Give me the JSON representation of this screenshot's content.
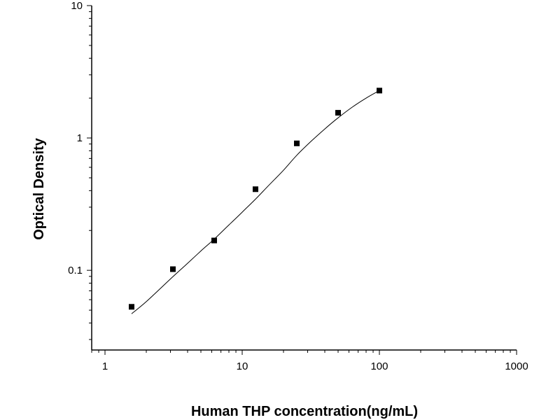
{
  "chart_data": {
    "type": "scatter",
    "title": "",
    "xlabel": "Human THP concentration(ng/mL)",
    "ylabel": "Optical Density",
    "x_scale": "log",
    "y_scale": "log",
    "xlim": [
      0.8,
      1000
    ],
    "ylim": [
      0.025,
      10
    ],
    "x_ticks": [
      1,
      10,
      100,
      1000
    ],
    "x_tick_labels": [
      "1",
      "10",
      "100",
      "1000"
    ],
    "y_ticks": [
      0.1,
      1,
      10
    ],
    "y_tick_labels": [
      "0.1",
      "1",
      "10"
    ],
    "grid": false,
    "legend": "none",
    "series": [
      {
        "kind": "points",
        "marker": "square",
        "color": "#000000",
        "x": [
          1.5625,
          3.125,
          6.25,
          12.5,
          25,
          50,
          100
        ],
        "y": [
          0.053,
          0.102,
          0.168,
          0.41,
          0.91,
          1.55,
          2.28
        ]
      },
      {
        "kind": "fit-curve",
        "color": "#000000",
        "x": [
          1.5625,
          2,
          3,
          4,
          5,
          6.25,
          8,
          10,
          12.5,
          16,
          20,
          25,
          32,
          40,
          50,
          64,
          80,
          100
        ],
        "y": [
          0.047,
          0.058,
          0.086,
          0.113,
          0.14,
          0.172,
          0.22,
          0.275,
          0.345,
          0.45,
          0.57,
          0.74,
          0.95,
          1.17,
          1.42,
          1.72,
          2.0,
          2.28
        ]
      }
    ]
  }
}
